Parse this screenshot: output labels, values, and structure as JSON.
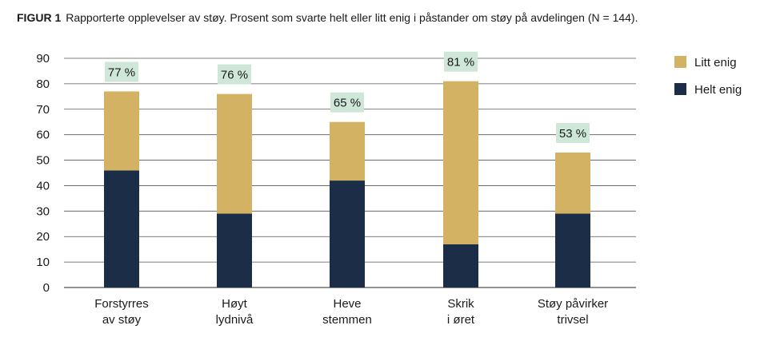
{
  "figure": {
    "label": "FIGUR 1",
    "title": "Rapporterte opplevelser av støy. Prosent som svarte helt eller litt enig i påstander om støy på avdelingen (N = 144)."
  },
  "colors": {
    "helt_enig": "#1c2e47",
    "litt_enig": "#d4b264",
    "total_label_bg": "#cfe7d8",
    "grid": "#555555"
  },
  "chart_data": {
    "type": "bar",
    "stacked": true,
    "categories": [
      [
        "Forstyrres",
        "av støy"
      ],
      [
        "Høyt",
        "lydnivå"
      ],
      [
        "Heve",
        "stemmen"
      ],
      [
        "Skrik",
        "i øret"
      ],
      [
        "Støy påvirker",
        "trivsel"
      ]
    ],
    "series": [
      {
        "name": "Helt enig",
        "values": [
          46,
          29,
          42,
          17,
          29
        ]
      },
      {
        "name": "Litt enig",
        "values": [
          31,
          47,
          23,
          64,
          24
        ]
      }
    ],
    "totals": [
      "77 %",
      "76 %",
      "65 %",
      "81 %",
      "53 %"
    ],
    "ylim": [
      0,
      90
    ],
    "yticks": [
      0,
      10,
      20,
      30,
      40,
      50,
      60,
      70,
      80,
      90
    ],
    "grid": true,
    "legend_position": "right",
    "legend_order": [
      "Litt enig",
      "Helt enig"
    ]
  }
}
